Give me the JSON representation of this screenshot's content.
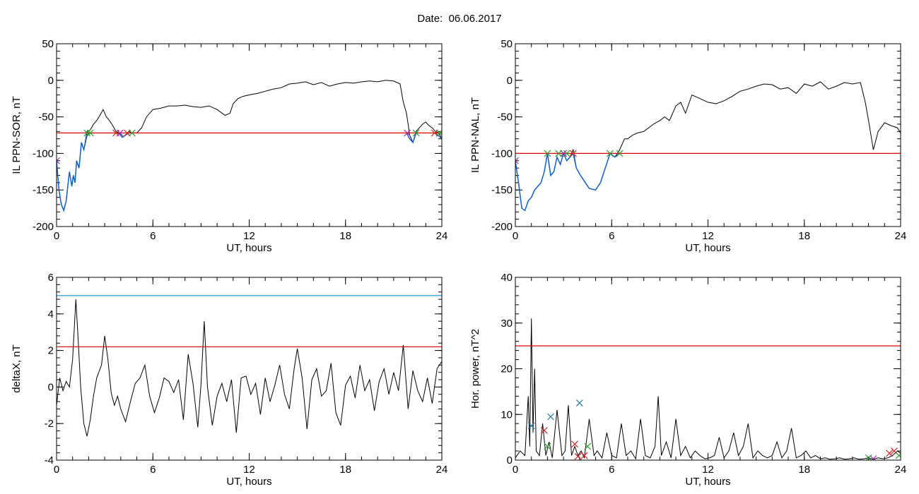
{
  "header": {
    "date_label": "Date:",
    "date_value": "06.06.2017"
  },
  "colors": {
    "trace": "#000000",
    "threshold": "#e00000",
    "level": "#1f9bd6",
    "highlight": "#1060d0",
    "marker_green": "#2ca02c",
    "marker_red": "#d62728",
    "marker_blue": "#1f77b4",
    "marker_purple": "#9b2fae"
  },
  "chart_data": [
    {
      "id": "sor",
      "type": "line",
      "title": "",
      "xlabel": "UT, hours",
      "ylabel": "IL PPN-SOR, nT",
      "xlim": [
        0,
        24
      ],
      "ylim": [
        -200,
        50
      ],
      "xticks": [
        0,
        6,
        12,
        18,
        24
      ],
      "yticks": [
        -200,
        -150,
        -100,
        -50,
        0,
        50
      ],
      "threshold": -72,
      "series": [
        {
          "x": [
            0,
            0.15,
            0.3,
            0.45,
            0.6,
            0.8,
            0.95,
            1.05,
            1.15,
            1.25,
            1.4,
            1.55,
            1.7,
            1.9,
            2.1,
            2.3,
            2.5,
            2.7,
            2.9,
            3.1,
            3.3,
            3.5,
            3.7,
            3.9,
            4.1,
            4.3,
            4.5,
            4.7,
            5.0,
            5.3,
            5.6,
            6.0,
            6.5,
            7.0,
            7.5,
            8.0,
            8.5,
            9.0,
            9.5,
            10.0,
            10.5,
            10.8,
            11.0,
            11.3,
            11.6,
            12.0,
            12.5,
            13.0,
            13.5,
            14.0,
            14.5,
            15.0,
            15.5,
            16.0,
            16.5,
            17.0,
            17.5,
            18.0,
            18.5,
            19.0,
            19.5,
            20.0,
            20.5,
            21.0,
            21.4,
            21.6,
            21.8,
            22.0,
            22.2,
            22.4,
            22.6,
            22.8,
            23.0,
            23.2,
            23.4,
            23.6,
            23.8,
            24.0
          ],
          "y": [
            -110,
            -150,
            -170,
            -178,
            -165,
            -125,
            -145,
            -130,
            -140,
            -110,
            -120,
            -85,
            -95,
            -70,
            -68,
            -60,
            -55,
            -48,
            -40,
            -50,
            -55,
            -62,
            -70,
            -72,
            -78,
            -75,
            -70,
            -72,
            -72,
            -65,
            -50,
            -40,
            -38,
            -35,
            -35,
            -34,
            -36,
            -37,
            -35,
            -40,
            -48,
            -45,
            -32,
            -25,
            -22,
            -20,
            -18,
            -15,
            -12,
            -10,
            -5,
            -4,
            -2,
            -6,
            -3,
            -8,
            -5,
            -3,
            -4,
            -2,
            -1,
            -2,
            0,
            -1,
            -5,
            -30,
            -45,
            -75,
            -85,
            -70,
            -65,
            -60,
            -57,
            -62,
            -65,
            -70,
            -72,
            -80
          ]
        }
      ],
      "highlight_segments": [
        {
          "x": [
            0,
            0.15,
            0.3,
            0.45,
            0.6,
            0.8,
            0.95,
            1.05,
            1.15,
            1.25,
            1.4,
            1.55,
            1.7,
            1.9,
            2.1
          ],
          "y": [
            -110,
            -150,
            -170,
            -178,
            -165,
            -125,
            -145,
            -130,
            -140,
            -110,
            -120,
            -85,
            -95,
            -75,
            -72
          ]
        },
        {
          "x": [
            3.7,
            3.9,
            4.1,
            4.3,
            4.5,
            4.7
          ],
          "y": [
            -72,
            -73,
            -78,
            -75,
            -72,
            -72
          ]
        },
        {
          "x": [
            21.8,
            22.0,
            22.2,
            22.4
          ],
          "y": [
            -72,
            -80,
            -85,
            -72
          ]
        },
        {
          "x": [
            23.6,
            23.8,
            24.0
          ],
          "y": [
            -72,
            -76,
            -80
          ]
        }
      ],
      "markers": [
        {
          "x": 0,
          "y": -110,
          "color": "purple"
        },
        {
          "x": 1.9,
          "y": -72,
          "color": "green"
        },
        {
          "x": 2.1,
          "y": -72,
          "color": "green"
        },
        {
          "x": 3.7,
          "y": -72,
          "color": "red"
        },
        {
          "x": 3.95,
          "y": -72,
          "color": "purple"
        },
        {
          "x": 4.4,
          "y": -72,
          "color": "red"
        },
        {
          "x": 4.7,
          "y": -72,
          "color": "green"
        },
        {
          "x": 21.85,
          "y": -72,
          "color": "purple"
        },
        {
          "x": 22.4,
          "y": -72,
          "color": "green"
        },
        {
          "x": 23.55,
          "y": -72,
          "color": "red"
        },
        {
          "x": 23.85,
          "y": -72,
          "color": "green"
        }
      ]
    },
    {
      "id": "nal",
      "type": "line",
      "title": "",
      "xlabel": "UT, hours",
      "ylabel": "IL PPN-NAL, nT",
      "xlim": [
        0,
        24
      ],
      "ylim": [
        -200,
        50
      ],
      "xticks": [
        0,
        6,
        12,
        18,
        24
      ],
      "yticks": [
        -200,
        -150,
        -100,
        -50,
        0,
        50
      ],
      "threshold": -100,
      "series": [
        {
          "x": [
            0,
            0.2,
            0.4,
            0.6,
            0.8,
            1.0,
            1.2,
            1.4,
            1.6,
            1.8,
            2.0,
            2.2,
            2.4,
            2.6,
            2.8,
            3.0,
            3.2,
            3.4,
            3.6,
            3.8,
            4.0,
            4.3,
            4.6,
            5.0,
            5.3,
            5.6,
            5.9,
            6.2,
            6.5,
            6.8,
            7.0,
            7.3,
            7.6,
            8.0,
            8.3,
            8.6,
            9.0,
            9.3,
            9.6,
            10.0,
            10.3,
            10.6,
            11.0,
            11.5,
            12.0,
            12.5,
            13.0,
            13.5,
            14.0,
            14.5,
            15.0,
            15.5,
            16.0,
            16.5,
            17.0,
            17.5,
            18.0,
            18.5,
            19.0,
            19.5,
            20.0,
            20.5,
            21.0,
            21.5,
            21.8,
            22.0,
            22.3,
            22.6,
            23.0,
            23.4,
            23.8,
            24.0
          ],
          "y": [
            -110,
            -140,
            -175,
            -178,
            -165,
            -160,
            -150,
            -145,
            -140,
            -125,
            -100,
            -130,
            -125,
            -105,
            -115,
            -100,
            -110,
            -105,
            -95,
            -120,
            -128,
            -138,
            -148,
            -150,
            -140,
            -120,
            -100,
            -105,
            -95,
            -80,
            -80,
            -75,
            -72,
            -70,
            -65,
            -60,
            -55,
            -50,
            -55,
            -35,
            -30,
            -45,
            -20,
            -25,
            -30,
            -32,
            -28,
            -22,
            -15,
            -12,
            -8,
            -5,
            -6,
            -12,
            -10,
            -18,
            -5,
            -8,
            -2,
            -12,
            -8,
            -3,
            -5,
            -3,
            -30,
            -55,
            -95,
            -70,
            -58,
            -62,
            -65,
            -72
          ]
        }
      ],
      "highlight_segments": [
        {
          "x": [
            0,
            0.2,
            0.4,
            0.6,
            0.8,
            1.0,
            1.2,
            1.4,
            1.6,
            1.8,
            2.0,
            2.2,
            2.4,
            2.6,
            2.8,
            3.0,
            3.2,
            3.4,
            3.6,
            3.8,
            4.0,
            4.3,
            4.6,
            5.0,
            5.3,
            5.6,
            5.9,
            6.2,
            6.5
          ],
          "y": [
            -110,
            -140,
            -175,
            -178,
            -165,
            -160,
            -150,
            -145,
            -140,
            -125,
            -100,
            -130,
            -125,
            -105,
            -115,
            -100,
            -110,
            -105,
            -100,
            -120,
            -128,
            -138,
            -148,
            -150,
            -140,
            -120,
            -100,
            -105,
            -100
          ]
        }
      ],
      "markers": [
        {
          "x": 0,
          "y": -110,
          "color": "purple"
        },
        {
          "x": 2.0,
          "y": -100,
          "color": "green"
        },
        {
          "x": 2.7,
          "y": -100,
          "color": "green"
        },
        {
          "x": 3.0,
          "y": -100,
          "color": "purple"
        },
        {
          "x": 3.2,
          "y": -100,
          "color": "green"
        },
        {
          "x": 3.6,
          "y": -100,
          "color": "red"
        },
        {
          "x": 5.9,
          "y": -100,
          "color": "green"
        },
        {
          "x": 6.5,
          "y": -100,
          "color": "green"
        }
      ]
    },
    {
      "id": "deltax",
      "type": "line",
      "title": "",
      "xlabel": "UT, hours",
      "ylabel": "deltaX, nT",
      "xlim": [
        0,
        24
      ],
      "ylim": [
        -4,
        6
      ],
      "xticks": [
        0,
        6,
        12,
        18,
        24
      ],
      "yticks": [
        -4,
        -2,
        0,
        2,
        4,
        6
      ],
      "threshold": 2.2,
      "level": 5,
      "series": [
        {
          "x": [
            0,
            0.2,
            0.4,
            0.6,
            0.8,
            1.0,
            1.2,
            1.35,
            1.5,
            1.7,
            1.9,
            2.1,
            2.3,
            2.5,
            2.8,
            3.0,
            3.2,
            3.4,
            3.6,
            3.8,
            4.0,
            4.3,
            4.6,
            4.9,
            5.2,
            5.5,
            5.8,
            6.1,
            6.4,
            6.7,
            7.0,
            7.3,
            7.6,
            7.9,
            8.2,
            8.5,
            8.8,
            9.0,
            9.2,
            9.4,
            9.7,
            10.0,
            10.3,
            10.6,
            10.9,
            11.2,
            11.5,
            11.8,
            12.1,
            12.4,
            12.7,
            13.0,
            13.3,
            13.6,
            13.9,
            14.2,
            14.5,
            14.8,
            15.0,
            15.3,
            15.6,
            15.9,
            16.2,
            16.5,
            16.8,
            17.1,
            17.4,
            17.7,
            18.0,
            18.3,
            18.6,
            18.9,
            19.2,
            19.5,
            19.8,
            20.1,
            20.4,
            20.7,
            21.0,
            21.3,
            21.6,
            21.9,
            22.2,
            22.5,
            22.8,
            23.1,
            23.4,
            23.7,
            24.0
          ],
          "y": [
            -1,
            0.5,
            -0.2,
            0.3,
            0,
            1.5,
            4.8,
            2.5,
            0,
            -2,
            -2.7,
            -1.8,
            -0.5,
            0.5,
            1.2,
            2.8,
            1.5,
            -0.3,
            -1,
            -0.5,
            -1.2,
            -1.9,
            -0.8,
            0.2,
            0.5,
            1.2,
            -0.5,
            -1.4,
            -0.6,
            0.5,
            0.3,
            -0.3,
            0.4,
            -1.8,
            1.8,
            0.2,
            -2.2,
            0.2,
            3.6,
            0,
            -2.1,
            -0.5,
            0.2,
            -0.8,
            0.4,
            -2.5,
            0.5,
            0.6,
            -0.4,
            0.2,
            -1.5,
            0.5,
            -0.8,
            0.1,
            1.2,
            -0.4,
            -1.2,
            1.0,
            2.1,
            0.5,
            -2.3,
            0.4,
            1.0,
            -0.5,
            -0.2,
            1.3,
            -1.4,
            -2.1,
            0.1,
            0.6,
            -0.6,
            1.2,
            -0.2,
            0.4,
            -1.3,
            0.3,
            1.0,
            -0.4,
            0.8,
            -0.2,
            2.3,
            -1.2,
            0.9,
            -0.2,
            -0.8,
            0.5,
            -0.9,
            1.0,
            1.4
          ]
        }
      ]
    },
    {
      "id": "power",
      "type": "line",
      "title": "",
      "xlabel": "UT, hours",
      "ylabel": "Hor. power, nT^2",
      "xlim": [
        0,
        24
      ],
      "ylim": [
        0,
        40
      ],
      "xticks": [
        0,
        6,
        12,
        18,
        24
      ],
      "yticks": [
        0,
        10,
        20,
        30,
        40
      ],
      "threshold": 25,
      "series": [
        {
          "x": [
            0,
            0.3,
            0.6,
            0.8,
            0.9,
            1.0,
            1.1,
            1.2,
            1.3,
            1.5,
            1.7,
            1.9,
            2.1,
            2.3,
            2.6,
            2.9,
            3.1,
            3.3,
            3.5,
            3.7,
            3.9,
            4.1,
            4.3,
            4.6,
            4.9,
            5.1,
            5.4,
            5.7,
            6.0,
            6.3,
            6.6,
            6.9,
            7.2,
            7.5,
            7.8,
            8.1,
            8.4,
            8.7,
            8.9,
            9.1,
            9.4,
            9.7,
            10.0,
            10.3,
            10.6,
            10.9,
            11.2,
            11.5,
            11.8,
            12.1,
            12.4,
            12.7,
            13.0,
            13.3,
            13.6,
            13.9,
            14.2,
            14.5,
            14.8,
            15.1,
            15.4,
            15.7,
            16.0,
            16.3,
            16.6,
            16.9,
            17.2,
            17.5,
            17.8,
            18.1,
            18.4,
            18.7,
            19.0,
            19.3,
            19.6,
            19.9,
            20.2,
            20.5,
            20.8,
            21.1,
            21.4,
            21.7,
            22.0,
            22.3,
            22.6,
            22.9,
            23.2,
            23.5,
            23.8,
            24.0
          ],
          "y": [
            0.5,
            2,
            1,
            14,
            3,
            31,
            6,
            20,
            2,
            1,
            8,
            1,
            4,
            0.5,
            11,
            1,
            2,
            12,
            1,
            3,
            1,
            2,
            0.5,
            9,
            1,
            2,
            0.5,
            6,
            1,
            0.5,
            8,
            1,
            2,
            0.3,
            9,
            1,
            0.5,
            3,
            14,
            1,
            4,
            0.5,
            9,
            1,
            3,
            0.5,
            2,
            1,
            0.3,
            0.5,
            1,
            5,
            0.5,
            2,
            6,
            1,
            3,
            8,
            0.5,
            2,
            1,
            0.5,
            1,
            4,
            0.5,
            2,
            7,
            0.5,
            1,
            2,
            0.5,
            1,
            0.3,
            0.5,
            0.2,
            0.3,
            0.5,
            0.2,
            0.3,
            0.5,
            0.2,
            0.3,
            0.5,
            0.2,
            0.5,
            0.3,
            0.5,
            1,
            2,
            1.5
          ]
        }
      ],
      "markers": [
        {
          "x": 1.0,
          "y": 7.5,
          "color": "blue"
        },
        {
          "x": 1.8,
          "y": 6.5,
          "color": "red"
        },
        {
          "x": 2.0,
          "y": 3,
          "color": "green"
        },
        {
          "x": 2.2,
          "y": 9.5,
          "color": "blue"
        },
        {
          "x": 3.7,
          "y": 3.5,
          "color": "red"
        },
        {
          "x": 3.9,
          "y": 0.8,
          "color": "red"
        },
        {
          "x": 4.0,
          "y": 12.5,
          "color": "blue"
        },
        {
          "x": 4.3,
          "y": 1,
          "color": "red"
        },
        {
          "x": 4.5,
          "y": 3,
          "color": "green"
        },
        {
          "x": 22.0,
          "y": 0.5,
          "color": "green"
        },
        {
          "x": 22.3,
          "y": 0.3,
          "color": "purple"
        },
        {
          "x": 23.3,
          "y": 1.5,
          "color": "red"
        },
        {
          "x": 23.6,
          "y": 2,
          "color": "red"
        },
        {
          "x": 23.9,
          "y": 1,
          "color": "green"
        }
      ]
    }
  ]
}
